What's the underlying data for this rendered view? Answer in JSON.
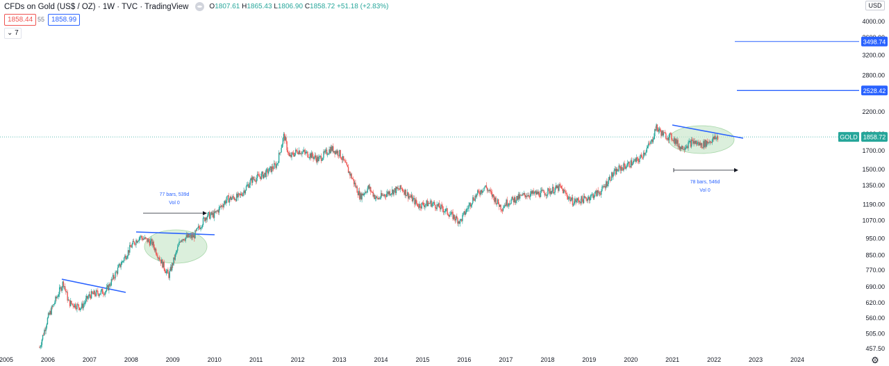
{
  "header": {
    "symbol": "CFDs on Gold (US$ / OZ) · 1W · TVC · TradingView",
    "ohlc": {
      "o_label": "O",
      "o": "1807.61",
      "h_label": "H",
      "h": "1865.43",
      "l_label": "L",
      "l": "1806.90",
      "c_label": "C",
      "c": "1858.72",
      "change": "+51.18 (+2.83%)"
    },
    "bid": "1858.44",
    "spread": "55",
    "ask": "1858.99",
    "indicators_button": "7"
  },
  "currency": "USD",
  "price_scale": {
    "ticks": [
      "4000.00",
      "3600.00",
      "3200.00",
      "2800.00",
      "2200.00",
      "1900.00",
      "1700.00",
      "1500.00",
      "1350.00",
      "1190.00",
      "1070.00",
      "950.00",
      "850.00",
      "770.00",
      "690.00",
      "620.00",
      "560.00",
      "505.00",
      "457.50"
    ],
    "labels": [
      {
        "text": "3498.74",
        "value": 3498.74,
        "color": "#2962ff"
      },
      {
        "text": "2528.42",
        "value": 2528.42,
        "color": "#2962ff"
      },
      {
        "text": "1858.72",
        "value": 1858.72,
        "color": "#26a69a",
        "tag": "GOLD"
      }
    ]
  },
  "time_scale": [
    "2005",
    "2006",
    "2007",
    "2008",
    "2009",
    "2010",
    "2011",
    "2012",
    "2013",
    "2014",
    "2015",
    "2016",
    "2017",
    "2018",
    "2019",
    "2020",
    "2021",
    "2022",
    "2023",
    "2024"
  ],
  "annotations": [
    {
      "line1": "77 bars, 539d",
      "line2": "Vol 0"
    },
    {
      "line1": "78 bars, 546d",
      "line2": "Vol 0"
    }
  ],
  "colors": {
    "up": "#26a69a",
    "down": "#ef5350",
    "drawing": "#2962ff",
    "ellipse": "#c8e6c9"
  },
  "chart_data": {
    "type": "line",
    "scale": "log",
    "ylim": [
      440,
      4400
    ],
    "xlim": [
      2005.0,
      2024.5
    ],
    "series": [
      {
        "x": [
          2005.8,
          2006.0,
          2006.37,
          2006.5,
          2006.8,
          2007.0,
          2007.4,
          2007.75,
          2008.0,
          2008.2,
          2008.5,
          2008.8,
          2008.9,
          2009.2,
          2009.5,
          2009.8,
          2010.0,
          2010.3,
          2010.6,
          2010.9,
          2011.2,
          2011.5,
          2011.67,
          2011.8,
          2012.0,
          2012.3,
          2012.5,
          2012.8,
          2013.0,
          2013.3,
          2013.5,
          2013.7,
          2013.9,
          2014.2,
          2014.5,
          2014.9,
          2015.2,
          2015.5,
          2015.9,
          2016.2,
          2016.5,
          2016.9,
          2017.0,
          2017.5,
          2017.9,
          2018.3,
          2018.6,
          2018.9,
          2019.3,
          2019.5,
          2019.7,
          2020.0,
          2020.2,
          2020.5,
          2020.6,
          2020.8,
          2021.0,
          2021.2,
          2021.5,
          2021.7,
          2021.9,
          2022.1
        ],
        "y": [
          460,
          560,
          710,
          620,
          600,
          650,
          670,
          800,
          900,
          960,
          920,
          780,
          740,
          950,
          960,
          1100,
          1110,
          1230,
          1250,
          1400,
          1450,
          1550,
          1880,
          1620,
          1700,
          1650,
          1600,
          1720,
          1670,
          1420,
          1250,
          1330,
          1230,
          1290,
          1320,
          1180,
          1200,
          1150,
          1060,
          1230,
          1340,
          1160,
          1200,
          1270,
          1280,
          1330,
          1210,
          1230,
          1300,
          1420,
          1500,
          1560,
          1600,
          1800,
          1980,
          1880,
          1850,
          1730,
          1800,
          1760,
          1810,
          1858.72
        ]
      }
    ]
  }
}
